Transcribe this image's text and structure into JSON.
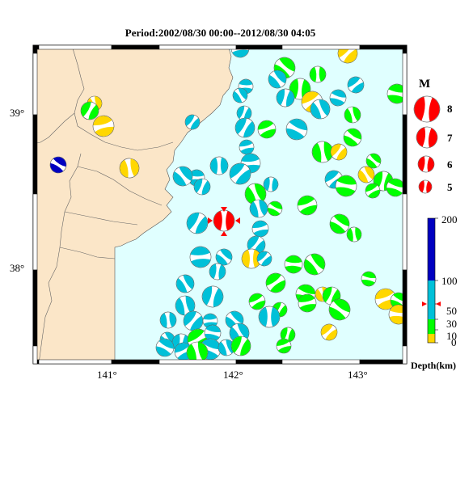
{
  "title": "Period:2002/08/30 00:00--2012/08/30 04:05",
  "axes": {
    "lon_labels": [
      "141°",
      "142°",
      "143°"
    ],
    "lat_labels": [
      "39°",
      "38°"
    ],
    "lon_range": [
      140.4,
      143.4
    ],
    "lat_range": [
      37.6,
      39.4
    ]
  },
  "colors": {
    "sea": "#e0ffff",
    "land": "#fbe6c8",
    "depth_0_10": "#ffd700",
    "depth_10_30": "#00ff00",
    "depth_30_100": "#00c0d8",
    "depth_100_200": "#0000c0",
    "mainshock": "#ff0000"
  },
  "magnitude_legend": {
    "title": "M",
    "items": [
      "8",
      "7",
      "6",
      "5"
    ]
  },
  "depth_legend": {
    "title": "Depth(km)",
    "ticks": [
      "200",
      "100",
      "50",
      "30",
      "10",
      "0"
    ]
  }
}
